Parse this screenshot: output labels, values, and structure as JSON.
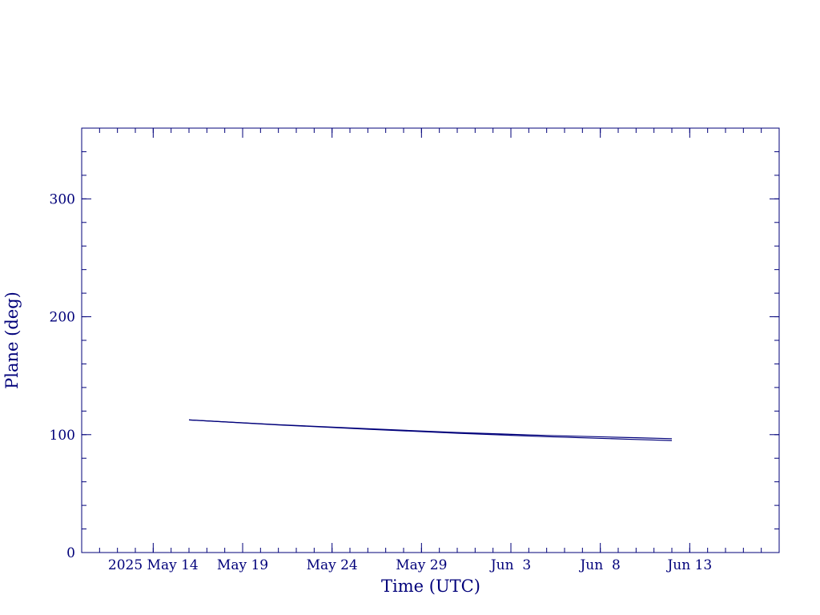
{
  "chart_data": {
    "type": "line",
    "title": "",
    "xlabel": "Time (UTC)",
    "ylabel": "Plane (deg)",
    "xlim": [
      "2025-05-10",
      "2025-06-18"
    ],
    "ylim": [
      0,
      360
    ],
    "x_ticks": [
      {
        "date": "2025-05-14",
        "label": "2025 May 14"
      },
      {
        "date": "2025-05-19",
        "label": "May 19"
      },
      {
        "date": "2025-05-24",
        "label": "May 24"
      },
      {
        "date": "2025-05-29",
        "label": "May 29"
      },
      {
        "date": "2025-06-03",
        "label": "Jun  3"
      },
      {
        "date": "2025-06-08",
        "label": "Jun  8"
      },
      {
        "date": "2025-06-13",
        "label": "Jun 13"
      }
    ],
    "y_ticks": [
      0,
      100,
      200,
      300
    ],
    "grid": false,
    "series": [
      {
        "x": [
          "2025-05-16",
          "2025-05-21",
          "2025-05-26",
          "2025-05-31",
          "2025-06-05",
          "2025-06-10",
          "2025-06-12"
        ],
        "y": [
          112.5,
          108.5,
          105.0,
          101.8,
          99.3,
          97.4,
          96.6
        ]
      },
      {
        "x": [
          "2025-05-16",
          "2025-05-21",
          "2025-05-26",
          "2025-05-31",
          "2025-06-05",
          "2025-06-10",
          "2025-06-12"
        ],
        "y": [
          112.5,
          108.3,
          104.6,
          101.2,
          98.3,
          95.9,
          95.0
        ]
      }
    ],
    "colors": {
      "axis": "#00007a",
      "line": "#00007a"
    }
  }
}
